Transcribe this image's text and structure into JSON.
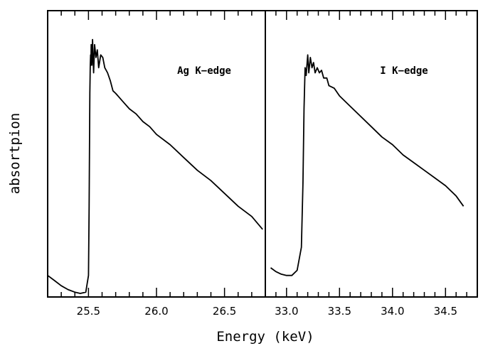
{
  "chart_data": {
    "type": "line",
    "xlabel": "Energy (keV)",
    "ylabel": "absortpion",
    "y_ticks_labeled": false,
    "ylim": [
      0,
      1
    ],
    "panels": [
      {
        "label": "Ag K−edge",
        "xlim": [
          25.2,
          26.8
        ],
        "x_tick_labels": [
          "25.5",
          "26.0",
          "26.5"
        ],
        "major_ticks": [
          25.5,
          26.0,
          26.5
        ],
        "minor_tick_step": 0.1,
        "series": [
          {
            "x": [
              25.2,
              25.25,
              25.3,
              25.35,
              25.4,
              25.44,
              25.48,
              25.5,
              25.505,
              25.51,
              25.513,
              25.516,
              25.518,
              25.52,
              25.522,
              25.525,
              25.53,
              25.538,
              25.545,
              25.555,
              25.565,
              25.575,
              25.59,
              25.605,
              25.62,
              25.64,
              25.66,
              25.68,
              25.7,
              25.75,
              25.8,
              25.85,
              25.9,
              25.95,
              26.0,
              26.1,
              26.2,
              26.3,
              26.4,
              26.5,
              26.6,
              26.7,
              26.78
            ],
            "y": [
              0.07,
              0.05,
              0.03,
              0.015,
              0.005,
              0.0,
              0.005,
              0.07,
              0.34,
              0.78,
              0.89,
              0.93,
              0.89,
              0.97,
              0.91,
              0.89,
              0.99,
              0.86,
              0.97,
              0.92,
              0.95,
              0.88,
              0.93,
              0.92,
              0.88,
              0.86,
              0.83,
              0.79,
              0.78,
              0.75,
              0.72,
              0.7,
              0.67,
              0.65,
              0.62,
              0.58,
              0.53,
              0.48,
              0.44,
              0.39,
              0.34,
              0.3,
              0.25
            ]
          }
        ]
      },
      {
        "label": "I K−edge",
        "xlim": [
          32.8,
          34.8
        ],
        "x_tick_labels": [
          "33.0",
          "33.5",
          "34.0",
          "34.5"
        ],
        "major_ticks": [
          33.0,
          33.5,
          34.0,
          34.5
        ],
        "minor_tick_step": 0.1,
        "series": [
          {
            "x": [
              32.85,
              32.9,
              32.95,
              33.0,
              33.05,
              33.1,
              33.14,
              33.155,
              33.165,
              33.175,
              33.185,
              33.2,
              33.21,
              33.225,
              33.24,
              33.255,
              33.27,
              33.29,
              33.31,
              33.33,
              33.35,
              33.38,
              33.4,
              33.45,
              33.5,
              33.6,
              33.7,
              33.8,
              33.9,
              34.0,
              34.1,
              34.2,
              34.3,
              34.4,
              34.5,
              34.6,
              34.67
            ],
            "y": [
              0.1,
              0.085,
              0.075,
              0.07,
              0.07,
              0.09,
              0.18,
              0.43,
              0.72,
              0.88,
              0.85,
              0.93,
              0.86,
              0.92,
              0.88,
              0.9,
              0.86,
              0.88,
              0.86,
              0.87,
              0.84,
              0.84,
              0.81,
              0.8,
              0.77,
              0.73,
              0.69,
              0.65,
              0.61,
              0.58,
              0.54,
              0.51,
              0.48,
              0.45,
              0.42,
              0.38,
              0.34
            ]
          }
        ]
      }
    ]
  }
}
